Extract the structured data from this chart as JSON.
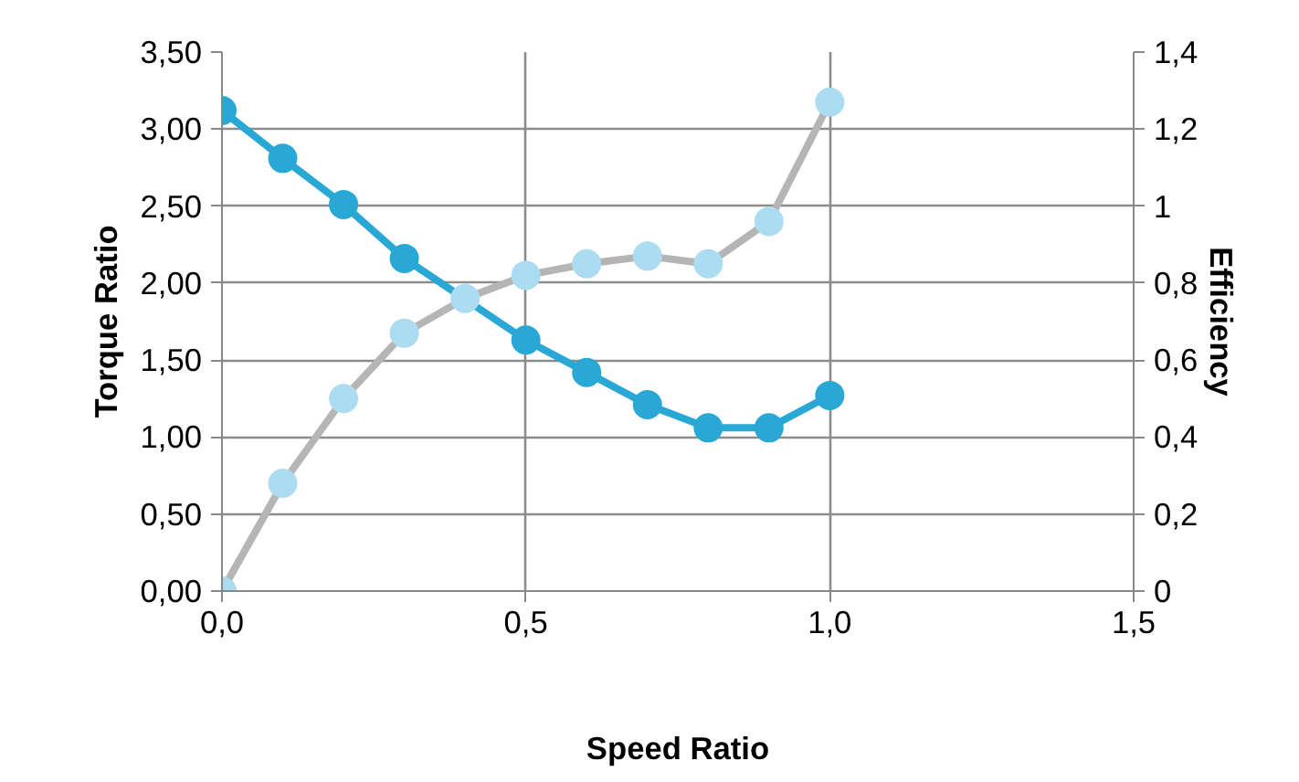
{
  "chart_data": {
    "type": "line",
    "xlabel": "Speed Ratio",
    "ylabel": "Torque Ratio",
    "y2label": "Efficiency",
    "x": [
      0,
      0.1,
      0.2,
      0.3,
      0.4,
      0.5,
      0.6,
      0.7,
      0.8,
      0.9,
      1.0
    ],
    "series": [
      {
        "color": "#29a8d6",
        "values": [
          3.12,
          2.81,
          2.51,
          2.16,
          null,
          1.63,
          1.42,
          1.21,
          1.06,
          1.06,
          1.27
        ]
      },
      {
        "color": "#b5b5b5",
        "axis": "y2",
        "colors": [
          "#acdcf1",
          "#acdcf1",
          "#acdcf1",
          "#acdcf1",
          "#acdcf1",
          "#acdcf1",
          "#acdcf1",
          "#acdcf1",
          "#acdcf1",
          "#acdcf1",
          "#acdcf1"
        ],
        "values": [
          0,
          0.28,
          0.5,
          0.67,
          0.76,
          0.82,
          0.85,
          0.87,
          0.85,
          0.96,
          1.27
        ]
      }
    ],
    "xlim": [
      0,
      1.5
    ],
    "xticks": [
      {
        "value": 0,
        "label": "0,0"
      },
      {
        "value": 0.5,
        "label": "0,5"
      },
      {
        "value": 1.0,
        "label": "1,0"
      },
      {
        "value": 1.5,
        "label": "1,5"
      }
    ],
    "ylim": [
      0,
      3.5
    ],
    "yticks": [
      {
        "value": 0,
        "label": "0,00"
      },
      {
        "value": 0.5,
        "label": "0,50"
      },
      {
        "value": 1.0,
        "label": "1,00"
      },
      {
        "value": 1.5,
        "label": "1,50"
      },
      {
        "value": 2.0,
        "label": "2,00"
      },
      {
        "value": 2.5,
        "label": "2,50"
      },
      {
        "value": 3.0,
        "label": "3,00"
      },
      {
        "value": 3.5,
        "label": "3,50"
      }
    ],
    "y2lim": [
      0,
      1.4
    ],
    "y2ticks": [
      0,
      {
        "value": 0.2,
        "label": "0,2"
      },
      {
        "value": 0.4,
        "label": "0,4"
      },
      {
        "value": 0.6,
        "label": "0,6"
      },
      {
        "value": 0.8,
        "label": "0,8"
      },
      1,
      {
        "value": 1.2,
        "label": "1,2"
      },
      {
        "value": 1.4,
        "label": "1,4"
      }
    ],
    "grid": true,
    "marker": "circle",
    "line_style": "solid"
  }
}
